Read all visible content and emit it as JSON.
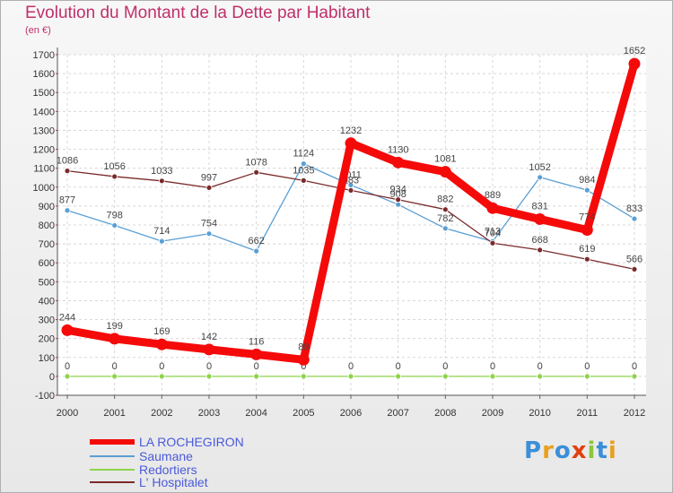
{
  "title": "Evolution du Montant de la Dette par Habitant",
  "subtitle": "(en €)",
  "logo_text": "Proxiti",
  "chart_data": {
    "type": "line",
    "categories": [
      "2000",
      "2001",
      "2002",
      "2003",
      "2004",
      "2005",
      "2006",
      "2007",
      "2008",
      "2009",
      "2010",
      "2011",
      "2012"
    ],
    "ylim": [
      -100,
      1700
    ],
    "yticks": [
      -100,
      0,
      100,
      200,
      300,
      400,
      500,
      600,
      700,
      800,
      900,
      1000,
      1100,
      1200,
      1300,
      1400,
      1500,
      1600,
      1700
    ],
    "grid": true,
    "legend_position": "bottom-left",
    "series": [
      {
        "name": "Saumane",
        "color": "#5a9fd4",
        "values": [
          877,
          798,
          714,
          754,
          662,
          1124,
          1011,
          908,
          782,
          713,
          1052,
          984,
          833
        ],
        "labels": [
          "877",
          "798",
          "714",
          "754",
          "662",
          "1124",
          "1011",
          "908",
          "782",
          "713",
          "1052",
          "984",
          "833"
        ]
      },
      {
        "name": "Redortiers",
        "color": "#8ed44a",
        "values": [
          0,
          0,
          0,
          0,
          0,
          0,
          0,
          0,
          0,
          0,
          0,
          0,
          0
        ],
        "labels": [
          "0",
          "0",
          "0",
          "0",
          "0",
          "0",
          "0",
          "0",
          "0",
          "0",
          "0",
          "0",
          "0"
        ]
      },
      {
        "name": "L' Hospitalet",
        "color": "#7a2a2a",
        "values": [
          1086,
          1056,
          1033,
          997,
          1078,
          1035,
          983,
          934,
          882,
          704,
          668,
          619,
          566
        ],
        "labels": [
          "1086",
          "1056",
          "1033",
          "997",
          "1078",
          "1035",
          "983",
          "934",
          "882",
          "704",
          "668",
          "619",
          "566"
        ]
      },
      {
        "name": "LA ROCHEGIRON",
        "color": "#f50a0a",
        "values": [
          244,
          199,
          169,
          142,
          116,
          88,
          1232,
          1130,
          1081,
          889,
          831,
          774,
          1652
        ],
        "labels": [
          "244",
          "199",
          "169",
          "142",
          "116",
          "88",
          "1232",
          "1130",
          "1081",
          "889",
          "831",
          "774",
          "1652"
        ]
      }
    ]
  }
}
